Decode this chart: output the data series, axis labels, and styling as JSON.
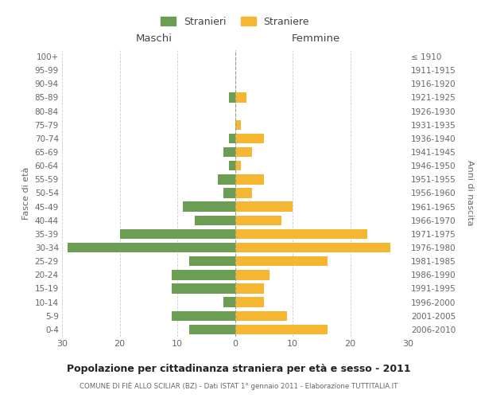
{
  "age_groups": [
    "100+",
    "95-99",
    "90-94",
    "85-89",
    "80-84",
    "75-79",
    "70-74",
    "65-69",
    "60-64",
    "55-59",
    "50-54",
    "45-49",
    "40-44",
    "35-39",
    "30-34",
    "25-29",
    "20-24",
    "15-19",
    "10-14",
    "5-9",
    "0-4"
  ],
  "birth_years": [
    "≤ 1910",
    "1911-1915",
    "1916-1920",
    "1921-1925",
    "1926-1930",
    "1931-1935",
    "1936-1940",
    "1941-1945",
    "1946-1950",
    "1951-1955",
    "1956-1960",
    "1961-1965",
    "1966-1970",
    "1971-1975",
    "1976-1980",
    "1981-1985",
    "1986-1990",
    "1991-1995",
    "1996-2000",
    "2001-2005",
    "2006-2010"
  ],
  "males": [
    0,
    0,
    0,
    1,
    0,
    0,
    1,
    2,
    1,
    3,
    2,
    9,
    7,
    20,
    29,
    8,
    11,
    11,
    2,
    11,
    8
  ],
  "females": [
    0,
    0,
    0,
    2,
    0,
    1,
    5,
    3,
    1,
    5,
    3,
    10,
    8,
    23,
    27,
    16,
    6,
    5,
    5,
    9,
    16
  ],
  "male_color": "#6b9e52",
  "female_color": "#f5b731",
  "background_color": "#ffffff",
  "grid_color": "#cccccc",
  "title": "Popolazione per cittadinanza straniera per età e sesso - 2011",
  "subtitle": "COMUNE DI FIÈ ALLO SCILIAR (BZ) - Dati ISTAT 1° gennaio 2011 - Elaborazione TUTTITALIA.IT",
  "xlabel_left": "Maschi",
  "xlabel_right": "Femmine",
  "ylabel_left": "Fasce di età",
  "ylabel_right": "Anni di nascita",
  "legend_male": "Stranieri",
  "legend_female": "Straniere",
  "xlim": 30,
  "tick_step": 10
}
